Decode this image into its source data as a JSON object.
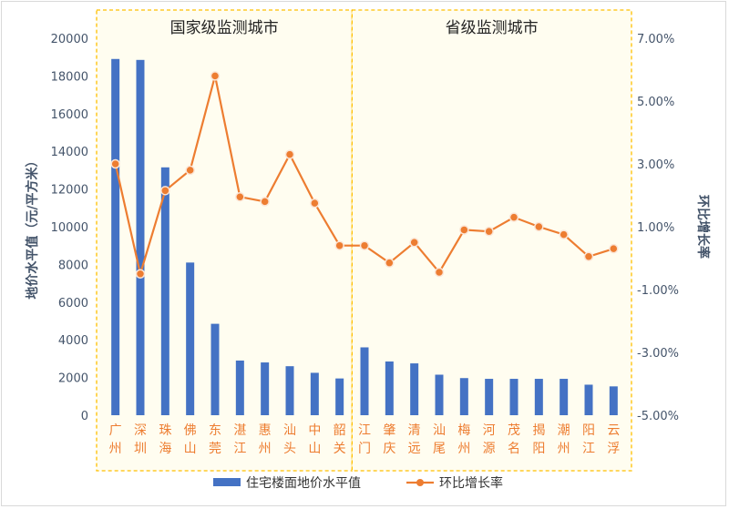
{
  "chart_data": {
    "type": "bar+line",
    "categories": [
      "广州",
      "深圳",
      "珠海",
      "佛山",
      "东莞",
      "湛江",
      "惠州",
      "汕头",
      "中山",
      "韶关",
      "江门",
      "肇庆",
      "清远",
      "汕尾",
      "梅州",
      "河源",
      "茂名",
      "揭阳",
      "潮州",
      "阳江",
      "云浮"
    ],
    "groups": [
      {
        "label": "国家级监测城市",
        "count": 10
      },
      {
        "label": "省级监测城市",
        "count": 11
      }
    ],
    "series": [
      {
        "name": "住宅楼面地价水平值",
        "type": "bar",
        "axis": "left",
        "values": [
          18900,
          18850,
          13150,
          8100,
          4850,
          2900,
          2800,
          2600,
          2250,
          1950,
          3600,
          2850,
          2750,
          2150,
          1970,
          1930,
          1930,
          1930,
          1930,
          1620,
          1530
        ]
      },
      {
        "name": "环比增长率",
        "type": "line",
        "axis": "right",
        "values": [
          3.0,
          -0.5,
          2.15,
          2.8,
          5.8,
          1.95,
          1.8,
          3.3,
          1.75,
          0.4,
          0.4,
          -0.15,
          0.5,
          -0.45,
          0.9,
          0.85,
          1.3,
          1.0,
          0.75,
          0.05,
          0.3
        ]
      }
    ],
    "y_left": {
      "label": "地价水平值（元/平方米）",
      "min": 0,
      "max": 20000,
      "ticks": [
        0,
        2000,
        4000,
        6000,
        8000,
        10000,
        12000,
        14000,
        16000,
        18000,
        20000
      ]
    },
    "y_right": {
      "label": "环比增长率",
      "min": -5.0,
      "max": 7.0,
      "tick_labels": [
        "-5.00%",
        "-3.00%",
        "-1.00%",
        "1.00%",
        "3.00%",
        "5.00%",
        "7.00%"
      ]
    },
    "grid": false,
    "legend_position": "bottom",
    "colors": {
      "bar": "#4472c4",
      "line": "#ed7d31",
      "axis_text_left": "#44546a",
      "axis_text_right": "#44546a",
      "cat_text": "#ed7d31",
      "group_border": "#ffc000",
      "group_fill": "#fffdf0"
    }
  }
}
